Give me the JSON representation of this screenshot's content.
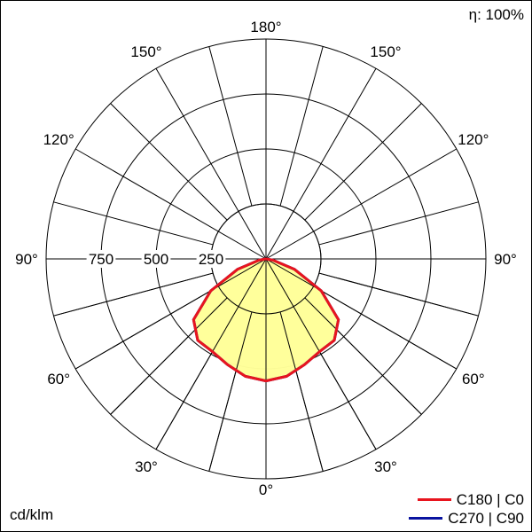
{
  "chart_data": {
    "type": "polar",
    "efficiency": "η: 100%",
    "unit": "cd/klm",
    "rlim": [
      0,
      1000
    ],
    "ring_values": [
      250,
      500,
      750,
      1000
    ],
    "ring_labels": [
      "250",
      "500",
      "750"
    ],
    "spoke_step_deg": 15,
    "angle_labels": [
      {
        "text": "180°",
        "angle": 180,
        "side": "top"
      },
      {
        "text": "150°",
        "angle": 150,
        "side": "left"
      },
      {
        "text": "150°",
        "angle": 150,
        "side": "right"
      },
      {
        "text": "120°",
        "angle": 120,
        "side": "left"
      },
      {
        "text": "120°",
        "angle": 120,
        "side": "right"
      },
      {
        "text": "90°",
        "angle": 90,
        "side": "left"
      },
      {
        "text": "90°",
        "angle": 90,
        "side": "right"
      },
      {
        "text": "60°",
        "angle": 60,
        "side": "left"
      },
      {
        "text": "60°",
        "angle": 60,
        "side": "right"
      },
      {
        "text": "30°",
        "angle": 30,
        "side": "left"
      },
      {
        "text": "30°",
        "angle": 30,
        "side": "right"
      },
      {
        "text": "0°",
        "angle": 0,
        "side": "bottom"
      }
    ],
    "series": [
      {
        "name": "C180 | C0",
        "color": "#e8141e",
        "fill": "#ffff99",
        "gamma": [
          0,
          10,
          20,
          30,
          40,
          50,
          60,
          70,
          80,
          90
        ],
        "values": [
          555,
          542,
          512,
          487,
          483,
          430,
          290,
          137,
          32,
          0
        ]
      },
      {
        "name": "C270 | C90",
        "color": "#0a14a0",
        "fill": "#ffff99",
        "gamma": [
          0,
          10,
          20,
          30,
          40,
          50,
          60,
          70,
          80,
          90
        ],
        "values": [
          555,
          542,
          512,
          487,
          483,
          430,
          290,
          137,
          32,
          0
        ]
      }
    ]
  }
}
